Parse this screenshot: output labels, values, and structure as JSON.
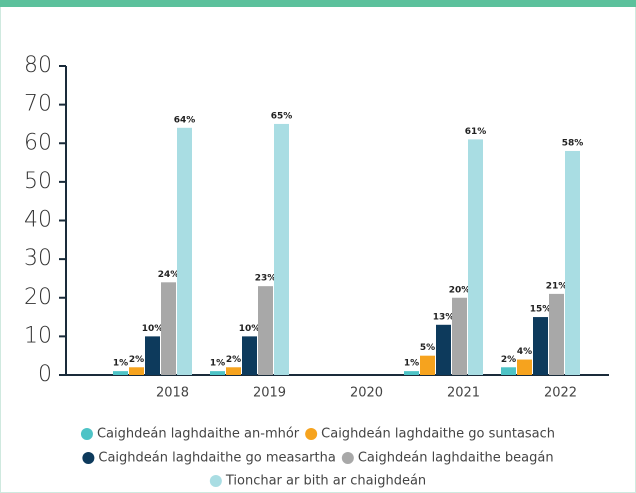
{
  "chart_data": {
    "type": "bar",
    "categories": [
      "2018",
      "2019",
      "2020",
      "2021",
      "2022"
    ],
    "series": [
      {
        "name": "Caighdeán laghdaithe an-mhór",
        "color": "#4ec3c6",
        "values": [
          1,
          1,
          null,
          1,
          2
        ],
        "value_labels": [
          "1%",
          "1%",
          null,
          "1%",
          "2%"
        ]
      },
      {
        "name": "Caighdeán laghdaithe go suntasach",
        "color": "#f6a31e",
        "values": [
          2,
          2,
          null,
          5,
          4
        ],
        "value_labels": [
          "2%",
          "2%",
          null,
          "5%",
          "4%"
        ]
      },
      {
        "name": "Caighdeán laghdaithe go measartha",
        "color": "#0d3a5c",
        "values": [
          10,
          10,
          null,
          13,
          15
        ],
        "value_labels": [
          "10%",
          "10%",
          null,
          "13%",
          "15%"
        ]
      },
      {
        "name": "Caighdeán laghdaithe beagán",
        "color": "#a8a8a8",
        "values": [
          24,
          23,
          null,
          20,
          21
        ],
        "value_labels": [
          "24%",
          "23%",
          null,
          "20%",
          "21%"
        ]
      },
      {
        "name": "Tionchar ar bith ar chaighdeán",
        "color": "#a9dde3",
        "values": [
          64,
          65,
          null,
          61,
          58
        ],
        "value_labels": [
          "64%",
          "65%",
          null,
          "61%",
          "58%"
        ]
      }
    ],
    "ylim": [
      0,
      80
    ],
    "yticks": [
      0,
      10,
      20,
      30,
      40,
      50,
      60,
      70,
      80
    ]
  }
}
